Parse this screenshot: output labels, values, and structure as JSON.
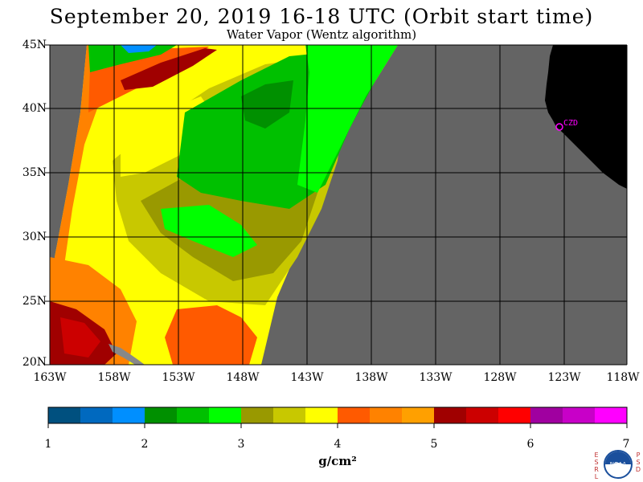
{
  "title": "September 20, 2019  16-18 UTC  (Orbit start time)",
  "subtitle": "Water Vapor (Wentz algorithm)",
  "map": {
    "lat_labels": [
      "45N",
      "40N",
      "35N",
      "30N",
      "25N",
      "20N"
    ],
    "lon_labels": [
      "163W",
      "158W",
      "153W",
      "148W",
      "143W",
      "138W",
      "133W",
      "128W",
      "123W",
      "118W"
    ],
    "station_label": "CZD",
    "colors": {
      "no_data": "#646464",
      "land": "#000000",
      "grid": "#000000",
      "station": "#ff00ff"
    }
  },
  "colorbar": {
    "colors": [
      "#00507f",
      "#0069bf",
      "#008fff",
      "#009000",
      "#00c000",
      "#00ff00",
      "#999900",
      "#c8c800",
      "#ffff00",
      "#ff5a00",
      "#ff8200",
      "#ffa000",
      "#a00000",
      "#cc0000",
      "#ff0000",
      "#a000a0",
      "#c800c8",
      "#ff00ff"
    ],
    "tick_labels": [
      "1",
      "2",
      "3",
      "4",
      "5",
      "6",
      "7"
    ],
    "unit_label": "g/cm²"
  },
  "logo": {
    "left_letters": [
      "E",
      "S",
      "R",
      "L"
    ],
    "right_letters": [
      "P",
      "S",
      "D"
    ],
    "center_text": "NOAA"
  }
}
